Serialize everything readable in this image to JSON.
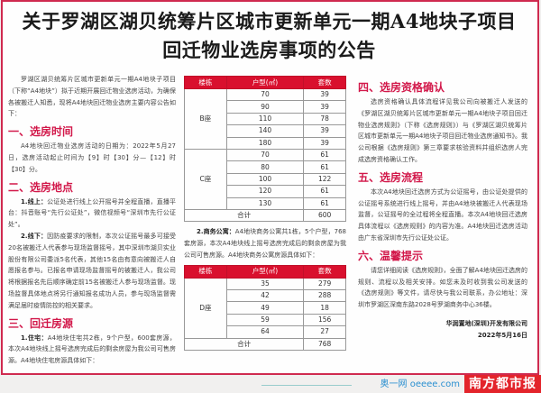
{
  "title": {
    "line1": "关于罗湖区湖贝统筹片区城市更新单元一期A4地块子项目",
    "line2": "回迁物业选房事项的公告"
  },
  "intro": "罗湖区湖贝统筹片区城市更新单元一期A4地块子项目（下称“A4地块”）拟于近期开展回迁物业选房活动，为确保各被搬迁人知悉，现将A4地块回迁物业选房主要内容公告如下：",
  "s1": {
    "heading": "一、选房时间",
    "body": "A4地块回迁物业选房活动的日期为：2022年5月27日，选房活动起止时间为【9】时【30】分—【12】时【30】分。"
  },
  "s2": {
    "heading": "二、选房地点",
    "p1_label": "1.线上：",
    "p1": "公证处进行线上公开摇号并全程直播，直播平台：抖音账号“先行公证处”，微信视频号“深圳市先行公证处”。",
    "p2_label": "2.线下：",
    "p2": "因防疫要求的限制，本次公证摇号最多可接受20名被搬迁人代表参与现场监督摇号，其中深圳市湖贝实业股份有限公司委派5名代表，其他15名由有意向被搬迁人自愿报名参与。已报名申请现场监督摇号的被搬迁人，我公司将根据报名先后顺序确定前15名被搬迁人参与现场监督。现场监督具体地点将另行通知报名成功人员，参与现场监督需满足届时疫情防控的相关要求。"
  },
  "s3": {
    "heading": "三、回迁房源",
    "p1_label": "1.住宅：",
    "p1": "A4地块住宅共2栋，9个户型，600套房源，本次A4地块线上摇号选房完成后的剩余房屋为我公司可售房源。A4地块住宅房源具体如下：",
    "p2_label": "2.商务公寓：",
    "p2": "A4地块商务公寓共1栋，5个户型，768套房源，本次A4地块线上摇号选房完成后的剩余房屋为我公司可售房源。A4地块商务公寓房源具体如下："
  },
  "table_headers": [
    "楼栋",
    "户型(㎡)",
    "套数"
  ],
  "table1": {
    "groups": [
      {
        "building": "B座",
        "rows": [
          [
            "70",
            "39"
          ],
          [
            "90",
            "39"
          ],
          [
            "110",
            "78"
          ],
          [
            "140",
            "39"
          ],
          [
            "180",
            "39"
          ]
        ]
      },
      {
        "building": "C座",
        "rows": [
          [
            "70",
            "61"
          ],
          [
            "80",
            "61"
          ],
          [
            "100",
            "122"
          ],
          [
            "120",
            "61"
          ],
          [
            "130",
            "61"
          ]
        ]
      }
    ],
    "total_label": "合计",
    "total": "600"
  },
  "table2": {
    "groups": [
      {
        "building": "D座",
        "rows": [
          [
            "35",
            "279"
          ],
          [
            "42",
            "288"
          ],
          [
            "49",
            "18"
          ],
          [
            "59",
            "156"
          ],
          [
            "64",
            "27"
          ]
        ]
      }
    ],
    "total_label": "合计",
    "total": "768"
  },
  "s4": {
    "heading": "四、选房资格确认",
    "body": "选房资格确认具体流程详见我公司向被搬迁人发送的《罗湖区湖贝统筹片区城市更新单元一期A4地块子项目回迁物业选房规则》（下称《选房规则》）与《罗湖区湖贝统筹片区城市更新单元一期A4地块子项目回迁物业选房通知书》。我公司根据《选房规则》第三章要求核验资料并组织选房人完成选房资格确认工作。"
  },
  "s5": {
    "heading": "五、选房流程",
    "body": "本次A4地块回迁选房方式为公证摇号，由公证处提供的公证摇号系统进行线上摇号，并由A4地块被搬迁人代表现场监督，公证摇号的全过程将全程直播。本次A4地块回迁选房具体流程以《选房规则》的内容为准。A4地块回迁选房活动由广东省深圳市先行公证处公证。"
  },
  "s6": {
    "heading": "六、温馨提示",
    "body": "请您详细阅读《选房规则》，全面了解A4地块回迁选房的规则、流程以及相关安排。如您未及时收到我公司发送的《选房规则》等文件，请尽快与我公司联系，办公地址：深圳市罗湖区深南东路2028号罗湖商务中心36楼。"
  },
  "signature": {
    "company": "华润置地(深圳)开发有限公司",
    "date": "2022年5月16日"
  },
  "watermark": {
    "paper": "南方都市报",
    "site": "奥一网 oeeee.com"
  }
}
